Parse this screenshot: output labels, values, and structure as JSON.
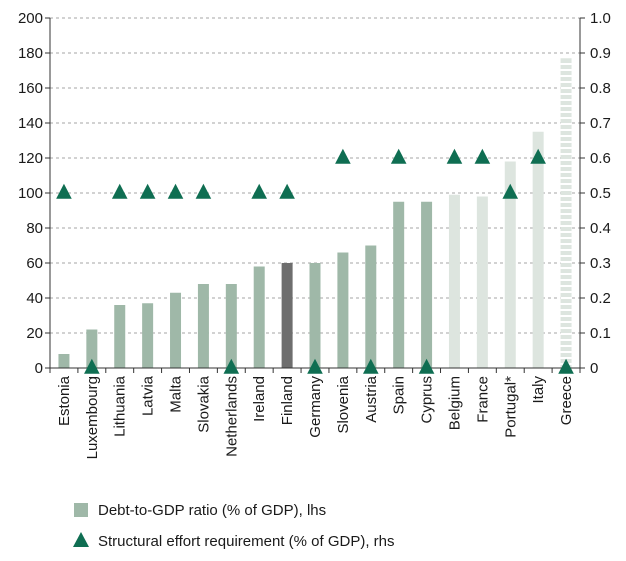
{
  "chart_data": {
    "type": "bar",
    "categories": [
      "Estonia",
      "Luxembourg",
      "Lithuania",
      "Latvia",
      "Malta",
      "Slovakia",
      "Netherlands",
      "Ireland",
      "Finland",
      "Germany",
      "Slovenia",
      "Austria",
      "Spain",
      "Cyprus",
      "Belgium",
      "France",
      "Portugal*",
      "Italy",
      "Greece"
    ],
    "series": [
      {
        "name": "Debt-to-GDP ratio (% of GDP), lhs",
        "axis": "left",
        "values": [
          8,
          22,
          36,
          37,
          43,
          48,
          48,
          58,
          60,
          60,
          66,
          70,
          95,
          95,
          99,
          98,
          118,
          135,
          177
        ],
        "colors": [
          "#9fb8a8",
          "#9fb8a8",
          "#9fb8a8",
          "#9fb8a8",
          "#9fb8a8",
          "#9fb8a8",
          "#9fb8a8",
          "#9fb8a8",
          "#6e6e6e",
          "#9fb8a8",
          "#9fb8a8",
          "#9fb8a8",
          "#9fb8a8",
          "#9fb8a8",
          "#dde5df",
          "#dde5df",
          "#dde5df",
          "#dde5df",
          "#dde5df"
        ]
      },
      {
        "name": "Structural effort requirement (% of GDP), rhs",
        "axis": "right",
        "marker": "triangle",
        "color": "#0f6e52",
        "values": [
          0.5,
          0.0,
          0.5,
          0.5,
          0.5,
          0.5,
          0.0,
          0.5,
          0.5,
          0.0,
          0.6,
          0.0,
          0.6,
          0.0,
          0.6,
          0.6,
          0.5,
          0.6,
          0.0
        ]
      }
    ],
    "y_left": {
      "min": 0,
      "max": 200,
      "ticks": [
        "0",
        "20",
        "40",
        "60",
        "80",
        "100",
        "120",
        "140",
        "160",
        "180",
        "200"
      ]
    },
    "y_right": {
      "min": 0,
      "max": 1.0,
      "ticks": [
        "0",
        "0.1",
        "0.2",
        "0.3",
        "0.4",
        "0.5",
        "0.6",
        "0.7",
        "0.8",
        "0.9",
        "1.0"
      ]
    },
    "grid": true,
    "legend_position": "bottom-left",
    "greece_bar_style": "dashed-white-stripes"
  }
}
